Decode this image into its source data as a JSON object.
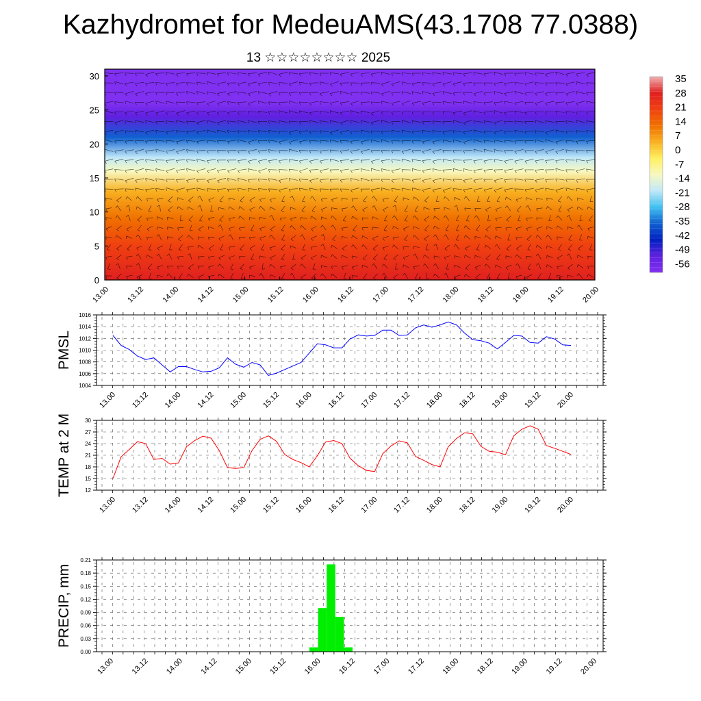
{
  "title": "Kazhydromet for MedeuAMS(43.1708 77.0388)",
  "subtitle": "13 ☆☆☆☆☆☆☆☆ 2025",
  "x_tick_labels": [
    "13.00",
    "13.12",
    "14.00",
    "14.12",
    "15.00",
    "15.12",
    "16.00",
    "16.12",
    "17.00",
    "17.12",
    "18.00",
    "18.12",
    "19.00",
    "19.12",
    "20.00"
  ],
  "colorbar": {
    "labels": [
      "35",
      "28",
      "21",
      "14",
      "7",
      "0",
      "-7",
      "-14",
      "-21",
      "-28",
      "-35",
      "-42",
      "-49",
      "-56"
    ],
    "colors": [
      "#f0b0b0",
      "#e02020",
      "#f04010",
      "#f07000",
      "#f8b020",
      "#fff060",
      "#f8f8c0",
      "#c0e8f8",
      "#40c0f0",
      "#1060d0",
      "#0020c0",
      "#6020e0",
      "#8030f0"
    ]
  },
  "chart_data": [
    {
      "type": "heatmap",
      "title": "",
      "xlabel": "",
      "ylabel": "",
      "ylim": [
        0,
        31
      ],
      "yticks": [
        0,
        5,
        10,
        15,
        20,
        25,
        30
      ],
      "x": [
        "13.00",
        "13.12",
        "14.00",
        "14.12",
        "15.00",
        "15.12",
        "16.00",
        "16.12",
        "17.00",
        "17.12",
        "18.00",
        "18.12",
        "19.00",
        "19.12",
        "20.00"
      ],
      "levels_temperature": [
        {
          "level": 0,
          "value": 30
        },
        {
          "level": 5,
          "value": 24
        },
        {
          "level": 9,
          "value": 14
        },
        {
          "level": 13,
          "value": 2
        },
        {
          "level": 16,
          "value": -10
        },
        {
          "level": 18,
          "value": -22
        },
        {
          "level": 21,
          "value": -35
        },
        {
          "level": 24,
          "value": -50
        },
        {
          "level": 26,
          "value": -56
        },
        {
          "level": 30,
          "value": -58
        }
      ],
      "overlay": "wind barbs"
    },
    {
      "type": "line",
      "ylabel": "PMSL",
      "ylim": [
        1004,
        1016
      ],
      "yticks": [
        1004,
        1006,
        1008,
        1010,
        1012,
        1014,
        1016
      ],
      "series": [
        {
          "color": "#0000ff",
          "x": [
            0,
            3,
            6,
            9,
            12,
            15,
            18,
            21,
            24,
            27,
            30,
            33,
            36,
            39,
            42,
            45,
            48,
            51,
            54,
            57,
            60,
            63,
            66,
            69,
            72,
            75,
            78,
            81,
            84,
            87,
            90,
            93,
            96,
            99,
            102,
            105,
            108,
            111,
            114,
            117,
            120,
            123,
            126,
            129,
            132,
            135,
            138,
            141,
            144,
            147,
            150,
            153,
            156,
            159,
            162,
            165,
            168
          ],
          "values": [
            1012.5,
            1010.8,
            1010.1,
            1009.0,
            1008.4,
            1008.7,
            1007.5,
            1006.3,
            1007.2,
            1007.2,
            1006.7,
            1006.3,
            1006.4,
            1007.0,
            1008.7,
            1007.6,
            1007.1,
            1007.9,
            1007.5,
            1005.7,
            1006.1,
            1006.7,
            1007.3,
            1007.9,
            1009.5,
            1011.1,
            1010.9,
            1010.4,
            1010.4,
            1011.9,
            1012.6,
            1012.4,
            1012.5,
            1013.4,
            1013.4,
            1012.5,
            1012.6,
            1013.8,
            1014.3,
            1013.9,
            1014.3,
            1014.8,
            1014.3,
            1012.9,
            1011.8,
            1011.6,
            1011.2,
            1010.2,
            1011.3,
            1012.5,
            1012.4,
            1011.3,
            1011.2,
            1012.3,
            1011.9,
            1010.9,
            1010.8
          ]
        }
      ]
    },
    {
      "type": "line",
      "ylabel": "TEMP at 2 M",
      "ylim": [
        12,
        30
      ],
      "yticks": [
        12,
        15,
        18,
        21,
        24,
        27,
        30
      ],
      "series": [
        {
          "color": "#ff0000",
          "x": [
            0,
            3,
            6,
            9,
            12,
            15,
            18,
            21,
            24,
            27,
            30,
            33,
            36,
            39,
            42,
            45,
            48,
            51,
            54,
            57,
            60,
            63,
            66,
            69,
            72,
            75,
            78,
            81,
            84,
            87,
            90,
            93,
            96,
            99,
            102,
            105,
            108,
            111,
            114,
            117,
            120,
            123,
            126,
            129,
            132,
            135,
            138,
            141,
            144,
            147,
            150,
            153,
            156,
            159,
            162,
            165,
            168
          ],
          "values": [
            15.0,
            20.6,
            22.5,
            24.5,
            24.0,
            19.9,
            20.2,
            18.7,
            19.0,
            23.2,
            24.8,
            25.9,
            25.4,
            22.2,
            17.8,
            17.6,
            17.8,
            22.2,
            25.1,
            26.0,
            24.6,
            21.2,
            19.9,
            19.1,
            18.0,
            20.9,
            24.4,
            24.8,
            24.0,
            20.2,
            18.3,
            17.1,
            16.8,
            21.4,
            23.4,
            24.7,
            24.2,
            20.7,
            19.7,
            18.6,
            18.0,
            23.2,
            25.3,
            26.8,
            26.5,
            23.3,
            22.0,
            21.8,
            21.1,
            26.0,
            27.7,
            28.6,
            27.7,
            23.5,
            22.8,
            22.0,
            21.2
          ]
        }
      ]
    },
    {
      "type": "bar",
      "ylabel": "PRECIP, mm",
      "ylim": [
        0,
        0.21
      ],
      "yticks": [
        "0.00",
        "0.03",
        "0.06",
        "0.09",
        "0.12",
        "0.15",
        "0.18",
        "0.21"
      ],
      "color": "#00ee00",
      "bars": [
        {
          "start": 69,
          "end": 72,
          "value": 0.01
        },
        {
          "start": 72,
          "end": 75,
          "value": 0.1
        },
        {
          "start": 75,
          "end": 78,
          "value": 0.2
        },
        {
          "start": 78,
          "end": 81,
          "value": 0.08
        },
        {
          "start": 81,
          "end": 84,
          "value": 0.01
        }
      ]
    }
  ]
}
